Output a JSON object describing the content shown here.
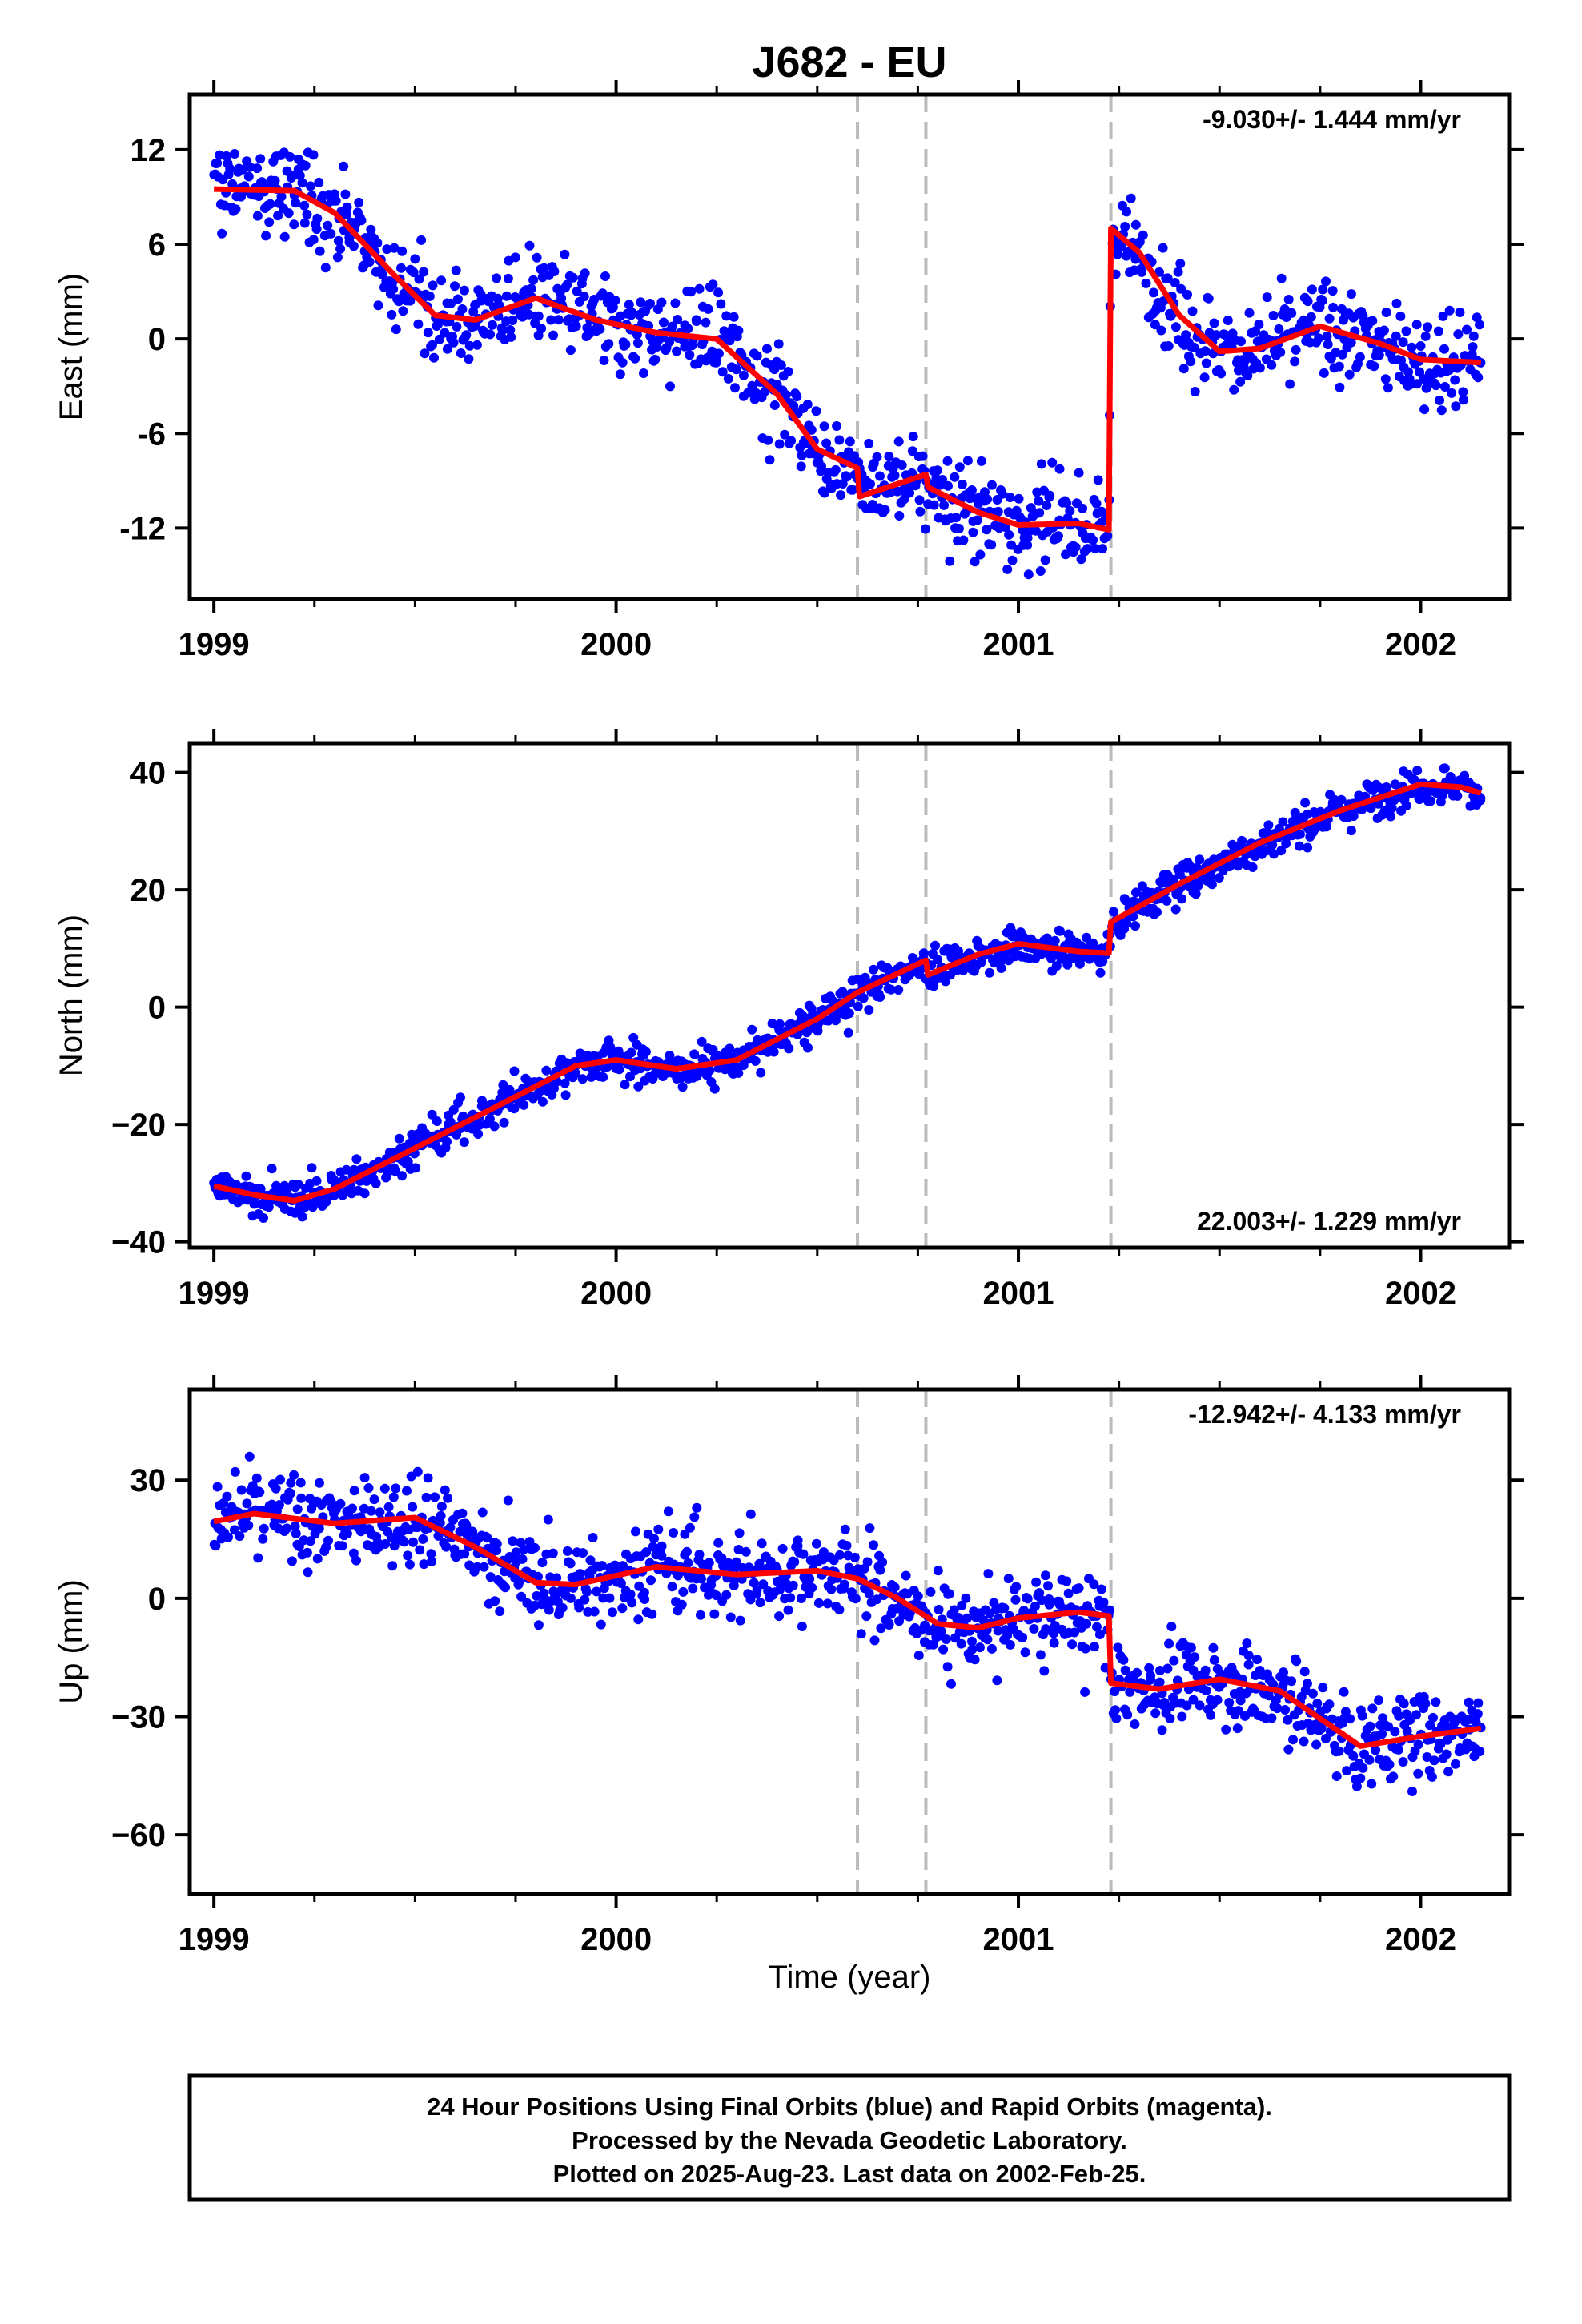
{
  "title": "J682 - EU",
  "colors": {
    "points": "#0000ff",
    "model": "#ff0000",
    "break_lines": "#bbbbbb",
    "frame": "#000000"
  },
  "x_axis": {
    "label": "Time (year)",
    "xlim": [
      1998.94,
      2002.22
    ],
    "tick_labels": [
      "1999",
      "2000",
      "2001",
      "2002"
    ],
    "major_ticks": [
      1999,
      2000,
      2001,
      2002
    ],
    "minor_ticks": [
      1999.25,
      1999.5,
      1999.75,
      2000.25,
      2000.5,
      2000.75,
      2001.25,
      2001.5,
      2001.75
    ]
  },
  "break_lines": [
    2000.6,
    2000.77,
    2001.23
  ],
  "data_start": 1999.0,
  "data_end": 2002.15,
  "chart_data": [
    {
      "type": "scatter",
      "component": "East",
      "ylabel": "East (mm)",
      "ylim": [
        -16.5,
        15.5
      ],
      "y_ticks": [
        12,
        6,
        0,
        -6,
        -12
      ],
      "y_tick_labels": [
        "12",
        "6",
        "0",
        "-6",
        "-12"
      ],
      "rate": "-9.030+/- 1.444 mm/yr",
      "rate_position": "top-right",
      "noise": 2.0,
      "model": [
        [
          1999.0,
          9.5
        ],
        [
          1999.2,
          9.4
        ],
        [
          1999.3,
          8
        ],
        [
          1999.45,
          4
        ],
        [
          1999.55,
          1.5
        ],
        [
          1999.65,
          1.2
        ],
        [
          1999.8,
          2.6
        ],
        [
          1999.95,
          1.2
        ],
        [
          2000.1,
          0.4
        ],
        [
          2000.25,
          0
        ],
        [
          2000.4,
          -3.5
        ],
        [
          2000.5,
          -7
        ],
        [
          2000.6,
          -8.2
        ],
        [
          2000.605,
          -10
        ],
        [
          2000.77,
          -8.6
        ],
        [
          2000.775,
          -9.4
        ],
        [
          2000.9,
          -11
        ],
        [
          2001.0,
          -11.8
        ],
        [
          2001.15,
          -11.7
        ],
        [
          2001.225,
          -12.1
        ],
        [
          2001.23,
          7
        ],
        [
          2001.3,
          5.5
        ],
        [
          2001.4,
          1.5
        ],
        [
          2001.5,
          -0.8
        ],
        [
          2001.6,
          -0.6
        ],
        [
          2001.75,
          0.8
        ],
        [
          2001.9,
          -0.3
        ],
        [
          2002.0,
          -1.3
        ],
        [
          2002.15,
          -1.5
        ]
      ]
    },
    {
      "type": "scatter",
      "component": "North",
      "ylabel": "North (mm)",
      "ylim": [
        -41,
        45
      ],
      "y_ticks": [
        40,
        20,
        0,
        -20,
        -40
      ],
      "y_tick_labels": [
        "40",
        "20",
        "0",
        "−20",
        "−40"
      ],
      "rate": "22.003+/- 1.229 mm/yr",
      "rate_position": "bottom-right",
      "noise": 2.2,
      "model": [
        [
          1999.0,
          -30.5
        ],
        [
          1999.1,
          -32
        ],
        [
          1999.2,
          -33
        ],
        [
          1999.3,
          -31
        ],
        [
          1999.5,
          -24
        ],
        [
          1999.7,
          -17
        ],
        [
          1999.9,
          -10
        ],
        [
          2000.0,
          -9
        ],
        [
          2000.15,
          -10.5
        ],
        [
          2000.3,
          -9
        ],
        [
          2000.5,
          -2
        ],
        [
          2000.6,
          2.5
        ],
        [
          2000.77,
          8
        ],
        [
          2000.775,
          5.5
        ],
        [
          2000.9,
          9
        ],
        [
          2001.0,
          10.8
        ],
        [
          2001.15,
          9.5
        ],
        [
          2001.225,
          9.2
        ],
        [
          2001.23,
          14.5
        ],
        [
          2001.4,
          21
        ],
        [
          2001.6,
          28
        ],
        [
          2001.8,
          33.5
        ],
        [
          2002.0,
          38
        ],
        [
          2002.1,
          37.5
        ],
        [
          2002.15,
          36.5
        ]
      ]
    },
    {
      "type": "scatter",
      "component": "Up",
      "ylabel": "Up (mm)",
      "ylim": [
        -75,
        53
      ],
      "y_ticks": [
        30,
        0,
        -30,
        -60
      ],
      "y_tick_labels": [
        "30",
        "0",
        "−30",
        "−60"
      ],
      "rate": "-12.942+/- 4.133 mm/yr",
      "rate_position": "top-right",
      "noise": 7.5,
      "model": [
        [
          1999.0,
          19.5
        ],
        [
          1999.1,
          21.5
        ],
        [
          1999.3,
          19
        ],
        [
          1999.5,
          20.5
        ],
        [
          1999.65,
          13
        ],
        [
          1999.8,
          4
        ],
        [
          1999.9,
          3.5
        ],
        [
          2000.1,
          8
        ],
        [
          2000.3,
          6
        ],
        [
          2000.5,
          7
        ],
        [
          2000.6,
          5
        ],
        [
          2000.7,
          0
        ],
        [
          2000.8,
          -6.5
        ],
        [
          2000.9,
          -7.5
        ],
        [
          2001.0,
          -5
        ],
        [
          2001.15,
          -3.5
        ],
        [
          2001.225,
          -4.5
        ],
        [
          2001.23,
          -21.5
        ],
        [
          2001.35,
          -23
        ],
        [
          2001.5,
          -20.5
        ],
        [
          2001.65,
          -23.5
        ],
        [
          2001.85,
          -37.5
        ],
        [
          2002.0,
          -35
        ],
        [
          2002.15,
          -33
        ]
      ]
    }
  ],
  "footer": {
    "line1": "24 Hour Positions Using Final Orbits (blue) and Rapid Orbits (magenta).",
    "line2": "Processed by the Nevada Geodetic Laboratory.",
    "line3": "Plotted on 2025-Aug-23. Last data on 2002-Feb-25."
  }
}
